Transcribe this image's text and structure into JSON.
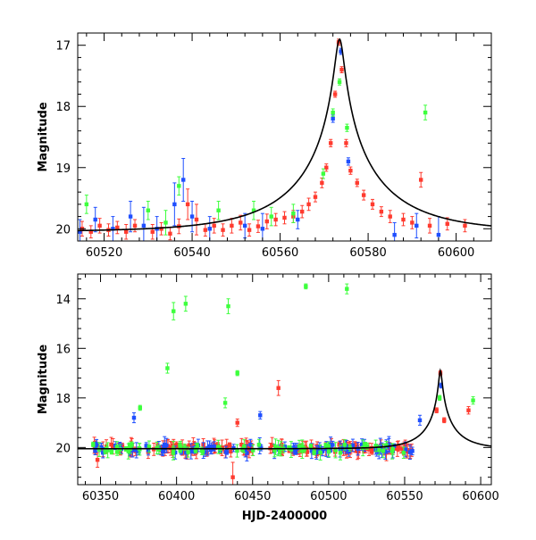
{
  "chart_data": [
    {
      "type": "scatter",
      "title": "",
      "xlabel": "",
      "ylabel": "Magnitude",
      "xlim": [
        60514,
        60608
      ],
      "ylim": [
        20.2,
        16.8
      ],
      "y_inverted": true,
      "x_ticks": [
        60520,
        60540,
        60560,
        60580,
        60600
      ],
      "y_ticks": [
        17,
        18,
        19,
        20
      ],
      "model_curve": {
        "color": "#000000",
        "type": "single-lens",
        "t0": 60573.5,
        "peak_mag": 16.9,
        "baseline_mag": 20.05,
        "tE": 22,
        "u0": 0.044
      },
      "series": [
        {
          "color": "#ff3b2f",
          "points": [
            [
              60515,
              20.0,
              0.12
            ],
            [
              60517,
              20.05,
              0.1
            ],
            [
              60519,
              19.95,
              0.12
            ],
            [
              60521,
              20.02,
              0.1
            ],
            [
              60523,
              19.98,
              0.1
            ],
            [
              60525,
              20.05,
              0.12
            ],
            [
              60527,
              19.95,
              0.1
            ],
            [
              60531,
              20.05,
              0.12
            ],
            [
              60533,
              20.0,
              0.1
            ],
            [
              60535,
              20.08,
              0.1
            ],
            [
              60537,
              19.96,
              0.12
            ],
            [
              60539,
              19.6,
              0.25
            ],
            [
              60541,
              19.85,
              0.25
            ],
            [
              60543,
              20.02,
              0.1
            ],
            [
              60545,
              19.95,
              0.12
            ],
            [
              60547,
              20.02,
              0.1
            ],
            [
              60549,
              19.95,
              0.12
            ],
            [
              60551,
              19.9,
              0.12
            ],
            [
              60553,
              20.02,
              0.1
            ],
            [
              60555,
              19.96,
              0.1
            ],
            [
              60557,
              19.88,
              0.12
            ],
            [
              60559,
              19.85,
              0.1
            ],
            [
              60561,
              19.82,
              0.1
            ],
            [
              60563,
              19.8,
              0.1
            ],
            [
              60565,
              19.72,
              0.1
            ],
            [
              60566.5,
              19.6,
              0.1
            ],
            [
              60568,
              19.48,
              0.08
            ],
            [
              60569.5,
              19.25,
              0.08
            ],
            [
              60570.5,
              19.0,
              0.06
            ],
            [
              60571.5,
              18.6,
              0.06
            ],
            [
              60572.5,
              17.8,
              0.05
            ],
            [
              60573.3,
              16.95,
              0.05
            ],
            [
              60574,
              17.4,
              0.05
            ],
            [
              60575,
              18.6,
              0.06
            ],
            [
              60576,
              19.05,
              0.06
            ],
            [
              60577.5,
              19.25,
              0.06
            ],
            [
              60579,
              19.45,
              0.08
            ],
            [
              60581,
              19.6,
              0.08
            ],
            [
              60583,
              19.72,
              0.08
            ],
            [
              60585,
              19.8,
              0.1
            ],
            [
              60588,
              19.85,
              0.1
            ],
            [
              60590,
              19.9,
              0.1
            ],
            [
              60592,
              19.2,
              0.12
            ],
            [
              60594,
              19.95,
              0.12
            ],
            [
              60598,
              19.92,
              0.1
            ],
            [
              60602,
              19.95,
              0.1
            ]
          ]
        },
        {
          "color": "#1f4fff",
          "points": [
            [
              60514.5,
              20.05,
              0.2
            ],
            [
              60518,
              19.85,
              0.2
            ],
            [
              60522,
              20.0,
              0.2
            ],
            [
              60526,
              19.8,
              0.25
            ],
            [
              60529,
              19.95,
              0.3
            ],
            [
              60532,
              20.0,
              0.2
            ],
            [
              60536,
              19.6,
              0.35
            ],
            [
              60538,
              19.2,
              0.35
            ],
            [
              60540,
              19.8,
              0.25
            ],
            [
              60544,
              20.0,
              0.2
            ],
            [
              60552,
              19.95,
              0.2
            ],
            [
              60556,
              20.0,
              0.25
            ],
            [
              60564,
              19.85,
              0.15
            ],
            [
              60572,
              18.2,
              0.06
            ],
            [
              60573.8,
              17.1,
              0.05
            ],
            [
              60575.5,
              18.9,
              0.06
            ],
            [
              60586,
              20.1,
              0.2
            ],
            [
              60591,
              19.95,
              0.2
            ],
            [
              60596,
              20.1,
              0.3
            ]
          ]
        },
        {
          "color": "#3dff3d",
          "points": [
            [
              60516,
              19.6,
              0.15
            ],
            [
              60530,
              19.7,
              0.15
            ],
            [
              60534,
              19.9,
              0.2
            ],
            [
              60537,
              19.3,
              0.15
            ],
            [
              60546,
              19.7,
              0.15
            ],
            [
              60554,
              19.7,
              0.15
            ],
            [
              60558,
              19.8,
              0.15
            ],
            [
              60563,
              19.75,
              0.15
            ],
            [
              60569.8,
              19.1,
              0.08
            ],
            [
              60572,
              18.1,
              0.06
            ],
            [
              60573.5,
              17.6,
              0.05
            ],
            [
              60575.2,
              18.35,
              0.06
            ],
            [
              60593,
              18.1,
              0.12
            ]
          ]
        }
      ]
    },
    {
      "type": "scatter",
      "title": "",
      "xlabel": "HJD-2400000",
      "ylabel": "Magnitude",
      "xlim": [
        60335,
        60607
      ],
      "ylim": [
        21.5,
        13.0
      ],
      "y_inverted": true,
      "x_ticks": [
        60350,
        60400,
        60450,
        60500,
        60550,
        60600
      ],
      "y_ticks": [
        14,
        16,
        18,
        20
      ],
      "model_curve": {
        "color": "#000000",
        "type": "single-lens",
        "t0": 60573.5,
        "peak_mag": 16.9,
        "baseline_mag": 20.05,
        "tE": 22,
        "u0": 0.044
      },
      "series": [
        {
          "color": "#ff3b2f",
          "baseline_points": 150,
          "points": [
            [
              60348,
              20.5,
              0.3
            ],
            [
              60440,
              19.0,
              0.15
            ],
            [
              60467,
              17.6,
              0.3
            ],
            [
              60437,
              21.2,
              0.6
            ],
            [
              60592,
              18.5,
              0.15
            ],
            [
              60573.5,
              17.0,
              0.1
            ],
            [
              60571,
              18.5,
              0.1
            ],
            [
              60576,
              18.9,
              0.1
            ]
          ]
        },
        {
          "color": "#1f4fff",
          "baseline_points": 90,
          "points": [
            [
              60372,
              18.8,
              0.2
            ],
            [
              60455,
              18.7,
              0.15
            ],
            [
              60560,
              18.9,
              0.2
            ],
            [
              60574,
              17.5,
              0.1
            ]
          ]
        },
        {
          "color": "#3dff3d",
          "baseline_points": 70,
          "points": [
            [
              60376,
              18.4,
              0.1
            ],
            [
              60394,
              16.8,
              0.2
            ],
            [
              60398,
              14.5,
              0.35
            ],
            [
              60406,
              14.2,
              0.3
            ],
            [
              60432,
              18.2,
              0.2
            ],
            [
              60434,
              14.3,
              0.3
            ],
            [
              60440,
              17.0,
              0.1
            ],
            [
              60485,
              13.5,
              0.1
            ],
            [
              60512,
              13.6,
              0.2
            ],
            [
              60595,
              18.1,
              0.15
            ],
            [
              60573,
              18.0,
              0.1
            ]
          ]
        }
      ]
    }
  ]
}
